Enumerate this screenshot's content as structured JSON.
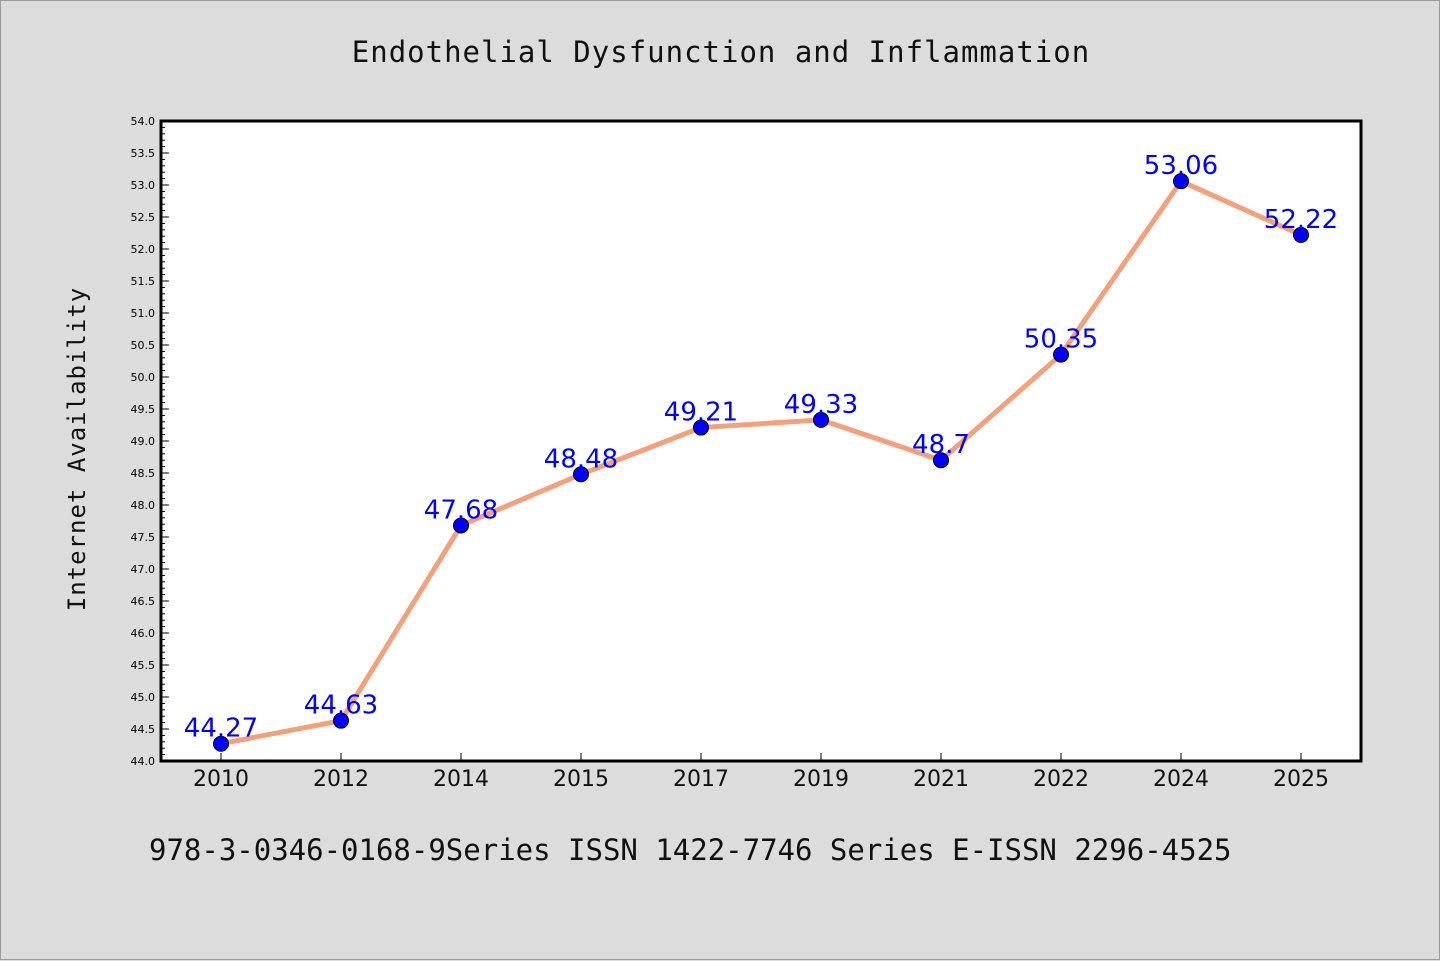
{
  "chart_data": {
    "type": "line",
    "title": "Endothelial Dysfunction and Inflammation",
    "xlabel": "",
    "ylabel": "Internet Availability",
    "footer": "978-3-0346-0168-9Series ISSN 1422-7746 Series E-ISSN 2296-4525",
    "categories": [
      "2010",
      "2012",
      "2014",
      "2015",
      "2017",
      "2019",
      "2021",
      "2022",
      "2024",
      "2025"
    ],
    "series": [
      {
        "values": [
          44.27,
          44.63,
          47.68,
          48.48,
          49.21,
          49.33,
          48.7,
          50.35,
          53.06,
          52.22
        ],
        "data_labels": [
          "44.27",
          "44.63",
          "47.68",
          "48.48",
          "49.21",
          "49.33",
          "48.7",
          "50.35",
          "53.06",
          "52.22"
        ],
        "line_color": "#f4a07a",
        "marker_color": "#0000ff"
      }
    ],
    "ylim": [
      44.0,
      54.0
    ],
    "ytick_step": 0.5,
    "yticks": [
      "44.0",
      "44.5",
      "45.0",
      "45.5",
      "46.0",
      "46.5",
      "47.0",
      "47.5",
      "48.0",
      "48.5",
      "49.0",
      "49.5",
      "50.0",
      "50.5",
      "51.0",
      "51.5",
      "52.0",
      "52.5",
      "53.0",
      "53.5",
      "54.0"
    ],
    "grid": false,
    "legend": "none",
    "label_color": "#0000ff",
    "background_color": "#dcdcdc",
    "plot_background": "#ffffff"
  }
}
